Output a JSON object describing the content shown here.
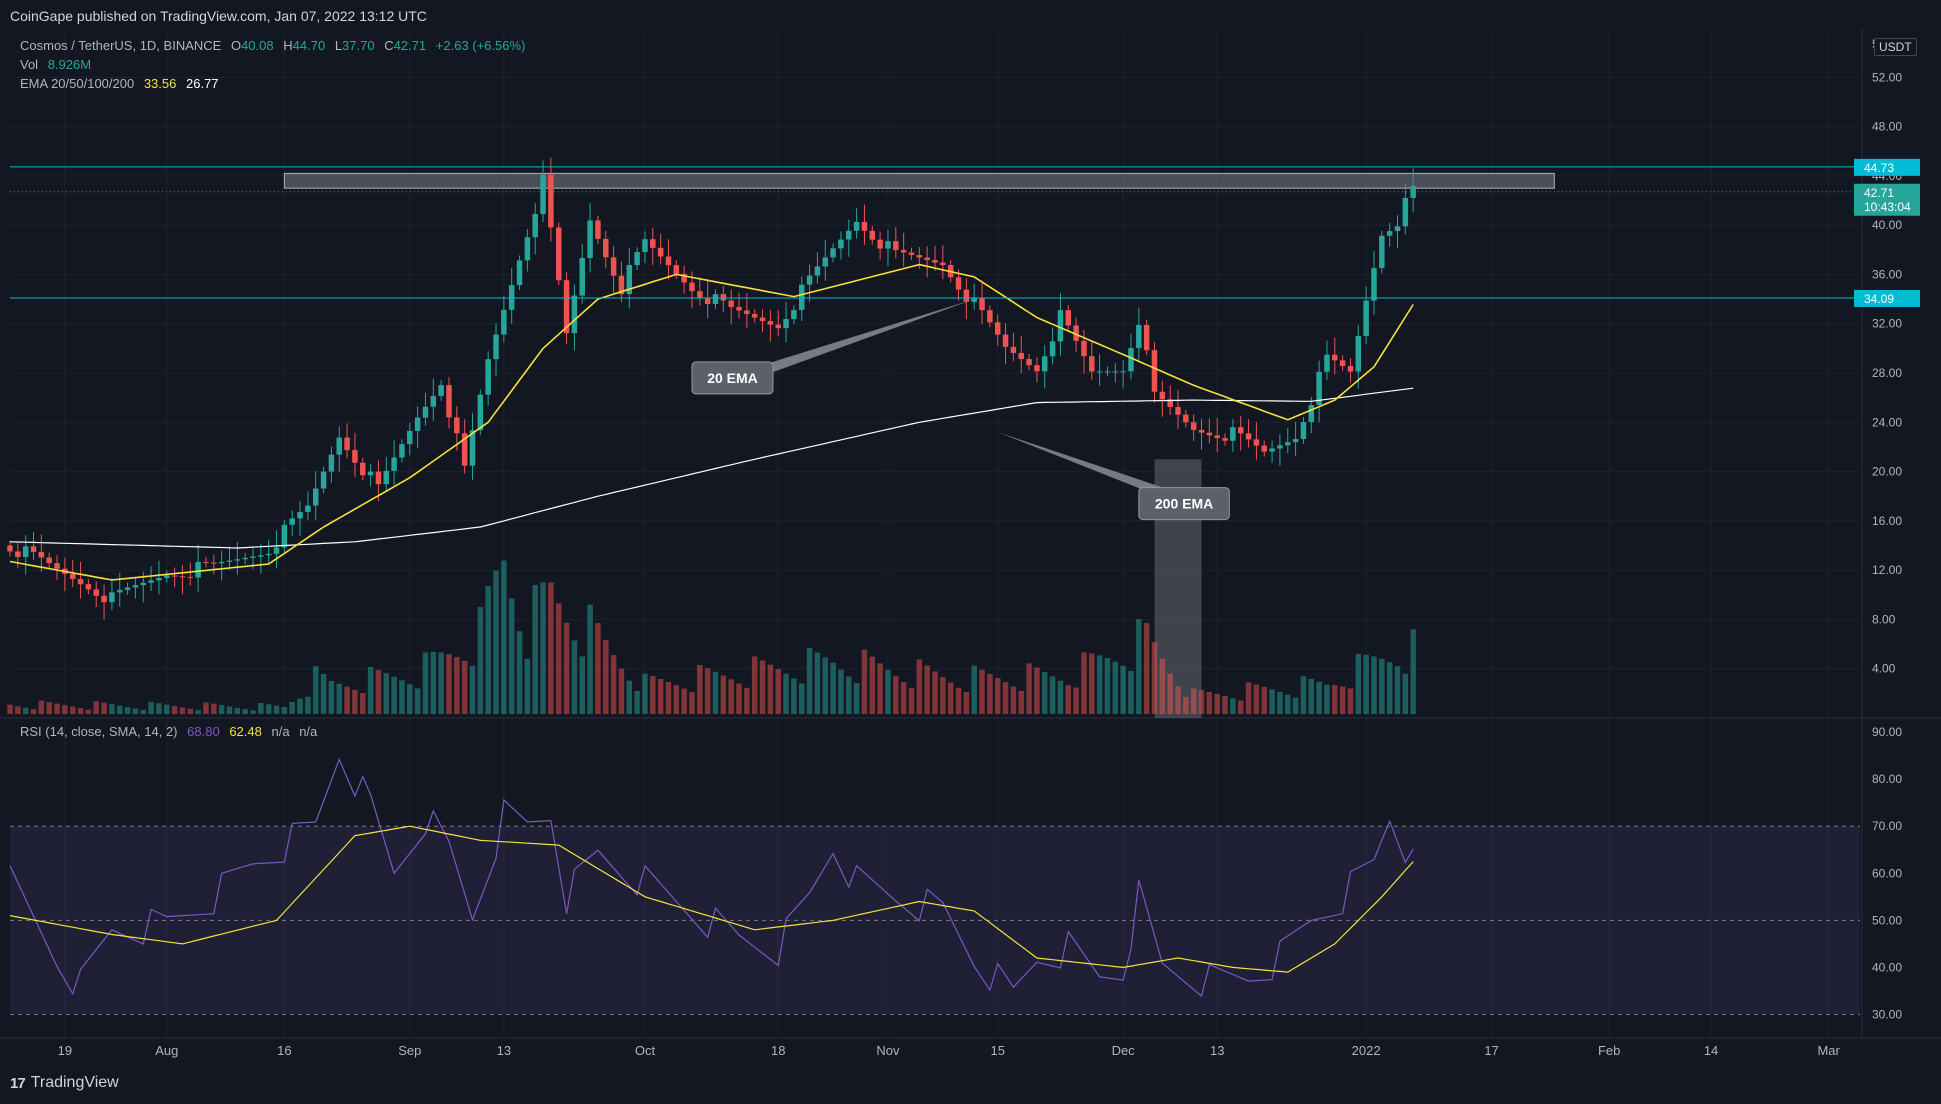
{
  "publish_info": "CoinGape published on TradingView.com, Jan 07, 2022 13:12 UTC",
  "footer_brand": "TradingView",
  "currency_badge": "USDT",
  "legend": {
    "symbol": "Cosmos / TetherUS, 1D, BINANCE",
    "open_label": "O",
    "open": "40.08",
    "high_label": "H",
    "high": "44.70",
    "low_label": "L",
    "low": "37.70",
    "close_label": "C",
    "close": "42.71",
    "change": "+2.63 (+6.56%)",
    "vol_label": "Vol",
    "vol": "8.926M",
    "ema_label": "EMA 20/50/100/200",
    "ema20": "33.56",
    "ema200": "26.77"
  },
  "rsi_legend": {
    "label": "RSI (14, close, SMA, 14, 2)",
    "rsi": "68.80",
    "sma": "62.48",
    "na1": "n/a",
    "na2": "n/a"
  },
  "colors": {
    "background": "#131722",
    "up": "#26a69a",
    "down": "#ef5350",
    "ema20": "#f5e23a",
    "ema200": "#ffffff",
    "rsi": "#7e57c2",
    "rsi_ma": "#f5e23a",
    "level": "#00bcd4"
  },
  "chart_data": [
    {
      "type": "candlestick",
      "title": "Cosmos / TetherUS, 1D, BINANCE",
      "ylim": [
        0,
        56
      ],
      "y_ticks": [
        "52.00",
        "48.00",
        "44.00",
        "40.00",
        "36.00",
        "32.00",
        "28.00",
        "24.00",
        "20.00",
        "16.00",
        "12.00",
        "8.00",
        "4.00"
      ],
      "y_tick_top": "5",
      "x_ticks": [
        "19",
        "Aug",
        "16",
        "Sep",
        "13",
        "Oct",
        "18",
        "Nov",
        "15",
        "Dec",
        "13",
        "2022",
        "17",
        "Feb",
        "14",
        "Mar"
      ],
      "x_tick_dates": [
        "2021-07-19",
        "2021-08-01",
        "2021-08-16",
        "2021-09-01",
        "2021-09-13",
        "2021-10-01",
        "2021-10-18",
        "2021-11-01",
        "2021-11-15",
        "2021-12-01",
        "2021-12-13",
        "2022-01-01",
        "2022-01-17",
        "2022-02-01",
        "2022-02-14",
        "2022-03-01"
      ],
      "x_range": [
        "2021-07-12",
        "2022-03-05"
      ],
      "price_labels": [
        {
          "value": 44.73,
          "text": "44.73"
        },
        {
          "value": 42.71,
          "text": "42.71",
          "sub": "10:43:04"
        },
        {
          "value": 34.09,
          "text": "34.09"
        }
      ],
      "horizontal_levels": [
        44.73,
        34.09
      ],
      "close_keypoints": [
        [
          "2021-07-12",
          14.0
        ],
        [
          "2021-07-18",
          12.0
        ],
        [
          "2021-07-22",
          10.8
        ],
        [
          "2021-07-25",
          9.6
        ],
        [
          "2021-08-01",
          11.8
        ],
        [
          "2021-08-07",
          12.2
        ],
        [
          "2021-08-14",
          13.8
        ],
        [
          "2021-08-19",
          17.0
        ],
        [
          "2021-08-23",
          23.0
        ],
        [
          "2021-08-28",
          18.5
        ],
        [
          "2021-09-02",
          24.5
        ],
        [
          "2021-09-05",
          27.5
        ],
        [
          "2021-09-08",
          20.0
        ],
        [
          "2021-09-11",
          29.0
        ],
        [
          "2021-09-15",
          37.5
        ],
        [
          "2021-09-18",
          43.5
        ],
        [
          "2021-09-21",
          31.0
        ],
        [
          "2021-09-24",
          40.5
        ],
        [
          "2021-09-28",
          35.0
        ],
        [
          "2021-10-01",
          38.5
        ],
        [
          "2021-10-07",
          35.0
        ],
        [
          "2021-10-12",
          33.0
        ],
        [
          "2021-10-18",
          32.0
        ],
        [
          "2021-10-25",
          38.0
        ],
        [
          "2021-10-28",
          40.5
        ],
        [
          "2021-11-02",
          37.5
        ],
        [
          "2021-11-08",
          37.0
        ],
        [
          "2021-11-12",
          33.5
        ],
        [
          "2021-11-16",
          30.0
        ],
        [
          "2021-11-20",
          28.5
        ],
        [
          "2021-11-23",
          32.5
        ],
        [
          "2021-11-27",
          28.0
        ],
        [
          "2021-12-01",
          28.5
        ],
        [
          "2021-12-03",
          32.5
        ],
        [
          "2021-12-05",
          26.0
        ],
        [
          "2021-12-10",
          23.5
        ],
        [
          "2021-12-15",
          23.0
        ],
        [
          "2021-12-19",
          21.5
        ],
        [
          "2021-12-23",
          23.0
        ],
        [
          "2021-12-27",
          29.0
        ],
        [
          "2021-12-30",
          28.0
        ],
        [
          "2022-01-01",
          34.0
        ],
        [
          "2022-01-03",
          39.5
        ],
        [
          "2022-01-05",
          40.5
        ],
        [
          "2022-01-07",
          42.71
        ]
      ],
      "ema20_keypoints": [
        [
          "2021-07-12",
          12.7
        ],
        [
          "2021-07-25",
          11.2
        ],
        [
          "2021-08-14",
          12.5
        ],
        [
          "2021-08-21",
          15.5
        ],
        [
          "2021-09-01",
          19.5
        ],
        [
          "2021-09-11",
          24.0
        ],
        [
          "2021-09-18",
          30.0
        ],
        [
          "2021-09-25",
          34.0
        ],
        [
          "2021-10-05",
          36.0
        ],
        [
          "2021-10-20",
          34.2
        ],
        [
          "2021-11-05",
          36.8
        ],
        [
          "2021-11-12",
          35.8
        ],
        [
          "2021-11-20",
          32.5
        ],
        [
          "2021-12-01",
          29.5
        ],
        [
          "2021-12-10",
          27.0
        ],
        [
          "2021-12-22",
          24.2
        ],
        [
          "2021-12-28",
          25.8
        ],
        [
          "2022-01-02",
          28.5
        ],
        [
          "2022-01-07",
          33.56
        ]
      ],
      "ema200_keypoints": [
        [
          "2021-07-12",
          14.3
        ],
        [
          "2021-08-10",
          13.8
        ],
        [
          "2021-08-25",
          14.3
        ],
        [
          "2021-09-10",
          15.5
        ],
        [
          "2021-09-25",
          18.0
        ],
        [
          "2021-10-15",
          21.0
        ],
        [
          "2021-11-05",
          24.0
        ],
        [
          "2021-11-20",
          25.6
        ],
        [
          "2021-12-10",
          25.8
        ],
        [
          "2021-12-25",
          25.7
        ],
        [
          "2022-01-07",
          26.77
        ]
      ],
      "volume_keypoints": [
        [
          "2021-07-12",
          1.2
        ],
        [
          "2021-08-16",
          1.0
        ],
        [
          "2021-08-20",
          3.5
        ],
        [
          "2021-08-22",
          3.0
        ],
        [
          "2021-09-02",
          4.0
        ],
        [
          "2021-09-10",
          7.5
        ],
        [
          "2021-09-13",
          14.2
        ],
        [
          "2021-09-16",
          8.0
        ],
        [
          "2021-09-19",
          11.0
        ],
        [
          "2021-09-22",
          9.0
        ],
        [
          "2021-10-01",
          3.0
        ],
        [
          "2021-10-25",
          5.0
        ],
        [
          "2021-11-10",
          3.5
        ],
        [
          "2021-11-24",
          3.8
        ],
        [
          "2021-12-04",
          7.0
        ],
        [
          "2021-12-10",
          2.0
        ],
        [
          "2021-12-27",
          3.0
        ],
        [
          "2022-01-05",
          6.0
        ],
        [
          "2022-01-07",
          6.0
        ]
      ],
      "annotations": [
        {
          "text": "20 EMA",
          "date": "2021-10-07",
          "value": 27.6,
          "pointer_date": "2021-11-12",
          "pointer_value": 34.0
        },
        {
          "text": "200 EMA",
          "date": "2021-12-03",
          "value": 17.4,
          "pointer_date": "2021-11-15",
          "pointer_value": 23.2
        }
      ],
      "resistance_zone": {
        "from_date": "2021-08-16",
        "to_date": "2022-01-25",
        "low": 43.0,
        "high": 44.2
      },
      "highlight_column": {
        "from_date": "2021-12-05",
        "to_date": "2021-12-11",
        "low": 0,
        "high": 21.0
      }
    },
    {
      "type": "line",
      "title": "RSI (14, close, SMA, 14, 2)",
      "ylim": [
        25,
        93
      ],
      "y_ticks": [
        "90.00",
        "80.00",
        "70.00",
        "60.00",
        "50.00",
        "40.00",
        "30.00"
      ],
      "bands": [
        70,
        50,
        30
      ],
      "series": [
        {
          "name": "RSI",
          "points": [
            [
              "2021-07-12",
              58
            ],
            [
              "2021-07-18",
              42
            ],
            [
              "2021-07-21",
              36
            ],
            [
              "2021-07-25",
              48
            ],
            [
              "2021-08-01",
              49
            ],
            [
              "2021-08-07",
              55
            ],
            [
              "2021-08-12",
              62
            ],
            [
              "2021-08-20",
              70
            ],
            [
              "2021-08-23",
              86
            ],
            [
              "2021-08-27",
              74
            ],
            [
              "2021-08-30",
              60
            ],
            [
              "2021-09-03",
              72
            ],
            [
              "2021-09-06",
              65
            ],
            [
              "2021-09-09",
              51
            ],
            [
              "2021-09-13",
              72
            ],
            [
              "2021-09-16",
              70
            ],
            [
              "2021-09-19",
              73
            ],
            [
              "2021-09-21",
              55
            ],
            [
              "2021-09-25",
              64
            ],
            [
              "2021-10-01",
              58
            ],
            [
              "2021-10-07",
              52
            ],
            [
              "2021-10-13",
              46
            ],
            [
              "2021-10-18",
              44
            ],
            [
              "2021-10-22",
              55
            ],
            [
              "2021-10-25",
              66
            ],
            [
              "2021-10-28",
              58
            ],
            [
              "2021-11-02",
              55
            ],
            [
              "2021-11-08",
              52
            ],
            [
              "2021-11-12",
              42
            ],
            [
              "2021-11-17",
              34
            ],
            [
              "2021-11-20",
              42
            ],
            [
              "2021-11-24",
              44
            ],
            [
              "2021-11-28",
              38
            ],
            [
              "2021-12-01",
              40
            ],
            [
              "2021-12-03",
              55
            ],
            [
              "2021-12-06",
              40
            ],
            [
              "2021-12-12",
              37
            ],
            [
              "2021-12-17",
              38
            ],
            [
              "2021-12-21",
              42
            ],
            [
              "2021-12-25",
              50
            ],
            [
              "2021-12-29",
              55
            ],
            [
              "2022-01-02",
              62
            ],
            [
              "2022-01-04",
              72
            ],
            [
              "2022-01-06",
              65
            ],
            [
              "2022-01-07",
              68.8
            ]
          ]
        },
        {
          "name": "SMA",
          "points": [
            [
              "2021-07-12",
              51
            ],
            [
              "2021-07-25",
              47
            ],
            [
              "2021-08-03",
              45
            ],
            [
              "2021-08-15",
              50
            ],
            [
              "2021-08-25",
              68
            ],
            [
              "2021-09-01",
              70
            ],
            [
              "2021-09-10",
              67
            ],
            [
              "2021-09-20",
              66
            ],
            [
              "2021-10-01",
              55
            ],
            [
              "2021-10-15",
              48
            ],
            [
              "2021-10-25",
              50
            ],
            [
              "2021-11-05",
              54
            ],
            [
              "2021-11-12",
              52
            ],
            [
              "2021-11-20",
              42
            ],
            [
              "2021-12-01",
              40
            ],
            [
              "2021-12-08",
              42
            ],
            [
              "2021-12-15",
              40
            ],
            [
              "2021-12-22",
              39
            ],
            [
              "2021-12-28",
              45
            ],
            [
              "2022-01-03",
              55
            ],
            [
              "2022-01-07",
              62.48
            ]
          ]
        }
      ]
    }
  ]
}
